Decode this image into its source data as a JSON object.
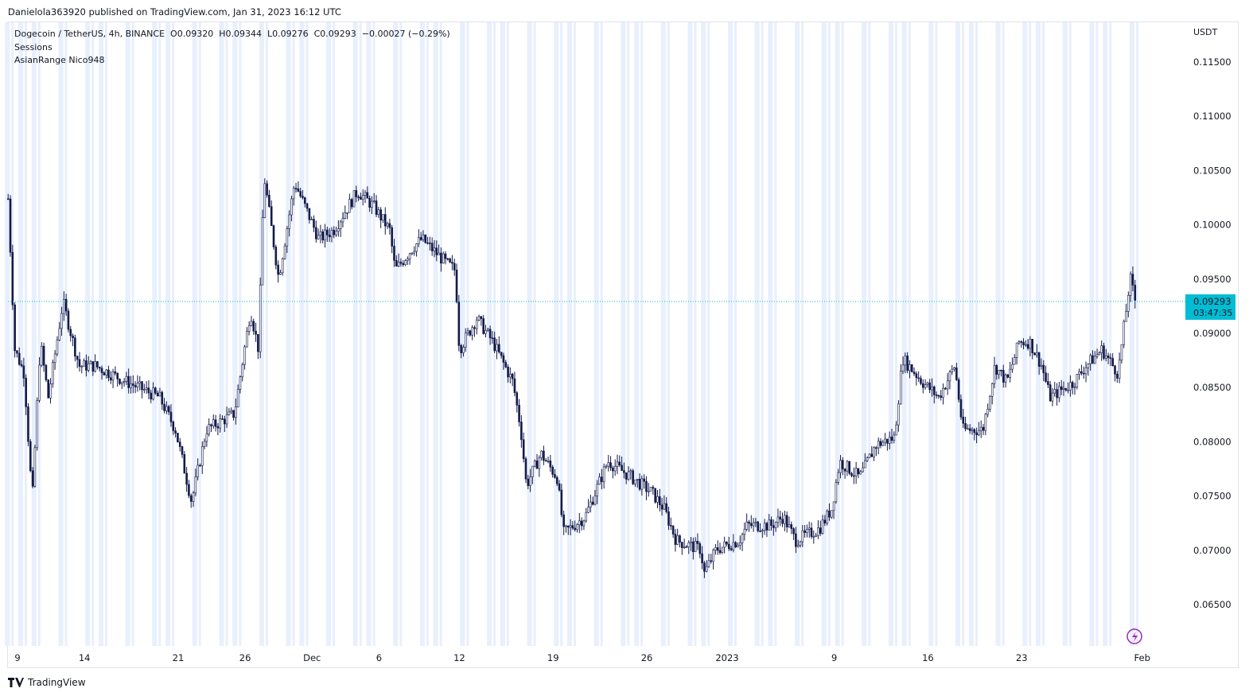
{
  "header": {
    "published": "Danielola363920 published on TradingView.com, Jan 31, 2023 16:12 UTC"
  },
  "legend": {
    "symbol": "Dogecoin / TetherUS, 4h, BINANCE",
    "open": "O0.09320",
    "high": "H0.09344",
    "low": "L0.09276",
    "close": "C0.09293",
    "change": "−0.00027 (−0.29%)",
    "indicators": [
      "Sessions",
      "AsianRange Nico948"
    ]
  },
  "footer": {
    "brand": "TradingView"
  },
  "colors": {
    "candle": "#131a4a",
    "session": "#e8effd",
    "last_price": "#00bcd4"
  },
  "chart_data": {
    "type": "candlestick",
    "title": "Dogecoin / TetherUS, 4h, BINANCE",
    "yunit": "USDT",
    "ylim": [
      0.0625,
      0.1165
    ],
    "yticks": [
      "0.11500",
      "0.11000",
      "0.10500",
      "0.10000",
      "0.09500",
      "0.09000",
      "0.08500",
      "0.08000",
      "0.07500",
      "0.07000",
      "0.06500"
    ],
    "xticks": [
      {
        "label": "9",
        "day": 0
      },
      {
        "label": "14",
        "day": 5
      },
      {
        "label": "21",
        "day": 12
      },
      {
        "label": "26",
        "day": 17
      },
      {
        "label": "Dec",
        "day": 22
      },
      {
        "label": "6",
        "day": 27
      },
      {
        "label": "12",
        "day": 33
      },
      {
        "label": "19",
        "day": 40
      },
      {
        "label": "26",
        "day": 47
      },
      {
        "label": "2023",
        "day": 53
      },
      {
        "label": "9",
        "day": 61
      },
      {
        "label": "16",
        "day": 68
      },
      {
        "label": "23",
        "day": 75
      },
      {
        "label": "Feb",
        "day": 84
      }
    ],
    "x_unit": "days since Nov 9, 2022",
    "last_price": {
      "value": "0.09293",
      "countdown": "03:47:35"
    },
    "close_path": [
      [
        -0.7,
        0.1024
      ],
      [
        -0.2,
        0.0885
      ],
      [
        0.5,
        0.0863
      ],
      [
        1.1,
        0.0745
      ],
      [
        1.7,
        0.0892
      ],
      [
        2.3,
        0.0841
      ],
      [
        3.4,
        0.0929
      ],
      [
        4.6,
        0.087
      ],
      [
        5.8,
        0.087
      ],
      [
        8.2,
        0.0855
      ],
      [
        10.6,
        0.0841
      ],
      [
        11.8,
        0.0811
      ],
      [
        13.0,
        0.0745
      ],
      [
        14.1,
        0.0811
      ],
      [
        16.2,
        0.0826
      ],
      [
        17.4,
        0.0921
      ],
      [
        18.0,
        0.0885
      ],
      [
        18.4,
        0.1046
      ],
      [
        19.5,
        0.0951
      ],
      [
        20.7,
        0.1039
      ],
      [
        22.5,
        0.0987
      ],
      [
        23.6,
        0.0995
      ],
      [
        25.4,
        0.1031
      ],
      [
        26.6,
        0.1017
      ],
      [
        27.8,
        0.0995
      ],
      [
        28.2,
        0.0958
      ],
      [
        29.6,
        0.098
      ],
      [
        30.2,
        0.0987
      ],
      [
        32.0,
        0.0965
      ],
      [
        32.7,
        0.0958
      ],
      [
        33.0,
        0.0885
      ],
      [
        34.3,
        0.0914
      ],
      [
        35.5,
        0.0892
      ],
      [
        37.0,
        0.0855
      ],
      [
        37.6,
        0.0811
      ],
      [
        38.0,
        0.076
      ],
      [
        39.1,
        0.0789
      ],
      [
        40.3,
        0.0767
      ],
      [
        40.8,
        0.0716
      ],
      [
        42.4,
        0.0731
      ],
      [
        44.1,
        0.0782
      ],
      [
        45.9,
        0.0767
      ],
      [
        47.4,
        0.0753
      ],
      [
        48.3,
        0.0738
      ],
      [
        49.2,
        0.0709
      ],
      [
        51.0,
        0.0701
      ],
      [
        51.3,
        0.0679
      ],
      [
        52.2,
        0.0701
      ],
      [
        53.9,
        0.0709
      ],
      [
        54.5,
        0.0723
      ],
      [
        56.3,
        0.0723
      ],
      [
        57.2,
        0.0731
      ],
      [
        58.1,
        0.0709
      ],
      [
        59.9,
        0.072
      ],
      [
        60.8,
        0.0738
      ],
      [
        61.4,
        0.0782
      ],
      [
        62.9,
        0.0767
      ],
      [
        64.1,
        0.0797
      ],
      [
        65.5,
        0.0804
      ],
      [
        66.1,
        0.0877
      ],
      [
        67.6,
        0.0855
      ],
      [
        68.8,
        0.0841
      ],
      [
        70.0,
        0.087
      ],
      [
        70.6,
        0.0811
      ],
      [
        72.1,
        0.0811
      ],
      [
        73.0,
        0.087
      ],
      [
        73.9,
        0.0855
      ],
      [
        74.8,
        0.0892
      ],
      [
        75.6,
        0.0892
      ],
      [
        76.5,
        0.087
      ],
      [
        77.1,
        0.0841
      ],
      [
        78.9,
        0.0855
      ],
      [
        79.8,
        0.087
      ],
      [
        81.0,
        0.0885
      ],
      [
        82.2,
        0.0863
      ],
      [
        82.8,
        0.0921
      ],
      [
        83.1,
        0.0951
      ],
      [
        83.5,
        0.0929
      ]
    ]
  }
}
